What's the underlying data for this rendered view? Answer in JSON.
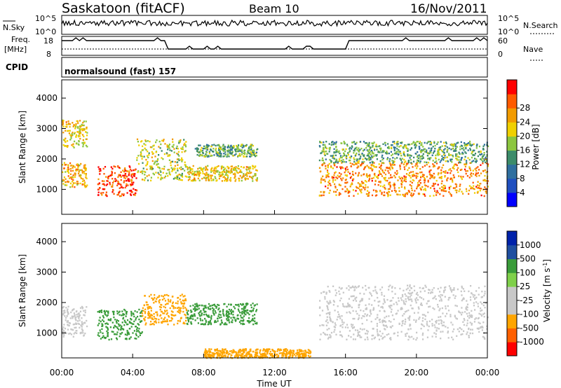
{
  "header": {
    "station": "Saskatoon (fitACF)",
    "beam": "Beam 10",
    "date": "16/Nov/2011"
  },
  "strip": {
    "nsky_label": "N.Sky",
    "nsky_ticks": [
      "10^5",
      "10^0"
    ],
    "nsearch_label": "N.Search",
    "nsearch_ticks": [
      "10^5",
      "10^0"
    ],
    "freq_label_1": "Freq.",
    "freq_label_2": "[MHz]",
    "freq_ticks": [
      "18",
      "8"
    ],
    "nave_label": "Nave",
    "nave_ticks": [
      "60",
      "0"
    ],
    "cpid_label": "CPID",
    "cpid_value": "normalsound (fast) 157"
  },
  "colors": {
    "power_scale": [
      "#0000ff",
      "#1f4fbf",
      "#2f6f9f",
      "#3c8c6a",
      "#8cc63f",
      "#f0d000",
      "#f29b00",
      "#ff5a00",
      "#ff0000"
    ],
    "velocity_scale": [
      "#ff0000",
      "#ff6000",
      "#ffa500",
      "#c8c8c8",
      "#c8c8c8",
      "#7fd04a",
      "#3a9c3a",
      "#1f4fa0",
      "#0022aa"
    ]
  },
  "chart_data": [
    {
      "type": "heatmap",
      "panel": "power",
      "xlabel": "Time UT",
      "ylabel": "Slant Range [km]",
      "xlim": [
        "00:00",
        "24:00"
      ],
      "x_ticks": [
        "00:00",
        "04:00",
        "08:00",
        "12:00",
        "16:00",
        "20:00",
        "00:00"
      ],
      "ylim": [
        180,
        4600
      ],
      "y_ticks": [
        1000,
        2000,
        3000,
        4000
      ],
      "colorbar_label": "Power [dB]",
      "colorbar_range": [
        0,
        32
      ],
      "colorbar_ticks": [
        4,
        8,
        12,
        16,
        20,
        24,
        28
      ],
      "scatter_bands": [
        {
          "t": [
            0.0,
            1.4
          ],
          "r": [
            1100,
            1900
          ],
          "value": 22
        },
        {
          "t": [
            0.0,
            1.4
          ],
          "r": [
            2400,
            3300
          ],
          "value": 20
        },
        {
          "t": [
            2.0,
            4.2
          ],
          "r": [
            800,
            1800
          ],
          "value": 28
        },
        {
          "t": [
            4.2,
            7.0
          ],
          "r": [
            1300,
            2700
          ],
          "value": 18
        },
        {
          "t": [
            7.0,
            11.0
          ],
          "r": [
            1300,
            1800
          ],
          "value": 20
        },
        {
          "t": [
            7.5,
            11.0
          ],
          "r": [
            2100,
            2500
          ],
          "value": 14
        },
        {
          "t": [
            14.5,
            24.0
          ],
          "r": [
            800,
            1900
          ],
          "value": 24
        },
        {
          "t": [
            14.5,
            24.0
          ],
          "r": [
            1900,
            2600
          ],
          "value": 14
        }
      ]
    },
    {
      "type": "heatmap",
      "panel": "velocity",
      "xlabel": "Time UT",
      "ylabel": "Slant Range [km]",
      "xlim": [
        "00:00",
        "24:00"
      ],
      "x_ticks": [
        "00:00",
        "04:00",
        "08:00",
        "12:00",
        "16:00",
        "20:00",
        "00:00"
      ],
      "ylim": [
        180,
        4600
      ],
      "y_ticks": [
        1000,
        2000,
        3000,
        4000
      ],
      "colorbar_label": "Velocity [m s^-1]",
      "colorbar_ticks": [
        1000,
        500,
        100,
        25,
        -25,
        -100,
        -500,
        -1000
      ],
      "scatter_bands": [
        {
          "t": [
            0.0,
            1.4
          ],
          "r": [
            900,
            1900
          ],
          "value": 0
        },
        {
          "t": [
            2.0,
            4.5
          ],
          "r": [
            800,
            1800
          ],
          "value": 120
        },
        {
          "t": [
            4.5,
            7.0
          ],
          "r": [
            1300,
            2300
          ],
          "value": -300
        },
        {
          "t": [
            7.0,
            11.0
          ],
          "r": [
            1300,
            2000
          ],
          "value": 150
        },
        {
          "t": [
            8.0,
            14.0
          ],
          "r": [
            200,
            500
          ],
          "value": -120
        },
        {
          "t": [
            14.5,
            24.0
          ],
          "r": [
            800,
            2600
          ],
          "value": 0
        }
      ]
    }
  ]
}
